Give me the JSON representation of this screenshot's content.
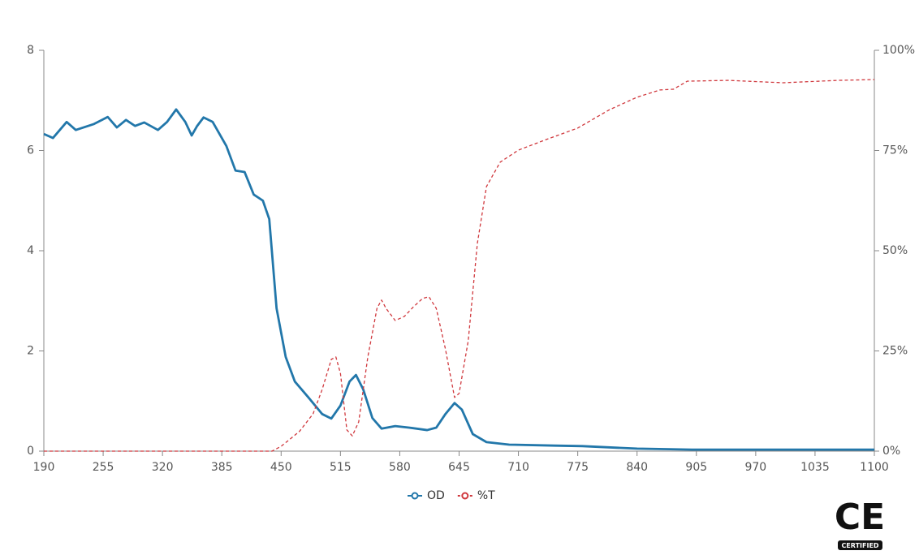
{
  "chart_data": {
    "type": "line",
    "xlim": [
      190,
      1100
    ],
    "xticks": [
      190,
      255,
      320,
      385,
      450,
      515,
      580,
      645,
      710,
      775,
      840,
      905,
      970,
      1035,
      1100
    ],
    "ylim": [
      0,
      8
    ],
    "yticks": [
      0,
      2,
      4,
      6,
      8
    ],
    "y2lim": [
      0,
      100
    ],
    "y2ticks": [
      {
        "value": 0,
        "label": "0%"
      },
      {
        "value": 25,
        "label": "25%"
      },
      {
        "value": 50,
        "label": "50%"
      },
      {
        "value": 75,
        "label": "75%"
      },
      {
        "value": 100,
        "label": "100%"
      }
    ],
    "series": [
      {
        "name": "OD",
        "color": "#2277aa",
        "line_style": "solid",
        "x": [
          190,
          200,
          215,
          225,
          245,
          260,
          270,
          280,
          290,
          300,
          315,
          325,
          335,
          345,
          352,
          358,
          365,
          375,
          390,
          400,
          410,
          420,
          430,
          437,
          445,
          455,
          465,
          480,
          495,
          505,
          515,
          525,
          532,
          540,
          550,
          560,
          575,
          590,
          610,
          620,
          630,
          640,
          648,
          660,
          675,
          700,
          750,
          780,
          840,
          900,
          1000,
          1100
        ],
        "values": [
          6.33,
          6.25,
          6.57,
          6.41,
          6.53,
          6.67,
          6.46,
          6.61,
          6.49,
          6.56,
          6.41,
          6.57,
          6.82,
          6.57,
          6.3,
          6.49,
          6.66,
          6.57,
          6.09,
          5.6,
          5.57,
          5.12,
          5.0,
          4.63,
          2.85,
          1.88,
          1.39,
          1.07,
          0.74,
          0.65,
          0.91,
          1.39,
          1.52,
          1.23,
          0.66,
          0.45,
          0.5,
          0.47,
          0.42,
          0.47,
          0.74,
          0.96,
          0.83,
          0.34,
          0.18,
          0.13,
          0.11,
          0.1,
          0.05,
          0.03,
          0.03,
          0.03
        ]
      },
      {
        "name": "%T",
        "color": "#d0383d",
        "line_style": "dashed",
        "axis": "y2",
        "x": [
          190,
          440,
          450,
          470,
          485,
          495,
          505,
          510,
          515,
          522,
          528,
          535,
          545,
          555,
          560,
          565,
          575,
          585,
          595,
          605,
          612,
          620,
          630,
          640,
          645,
          655,
          665,
          675,
          690,
          710,
          740,
          775,
          810,
          840,
          865,
          880,
          895,
          940,
          1000,
          1060,
          1100
        ],
        "values": [
          0,
          0,
          1.2,
          4.9,
          9.3,
          15.4,
          22.9,
          23.5,
          19.4,
          5.3,
          3.8,
          7.3,
          23.5,
          35.6,
          37.7,
          35.6,
          32.6,
          33.6,
          36.0,
          38.1,
          38.5,
          35.6,
          25.5,
          13.4,
          14.4,
          27.5,
          51.8,
          66.0,
          72.1,
          75.1,
          77.7,
          80.6,
          85.2,
          88.3,
          90.1,
          90.3,
          92.3,
          92.5,
          91.9,
          92.5,
          92.7
        ]
      }
    ]
  },
  "badge": {
    "mark": "CE",
    "label": "CERTIFIED"
  }
}
